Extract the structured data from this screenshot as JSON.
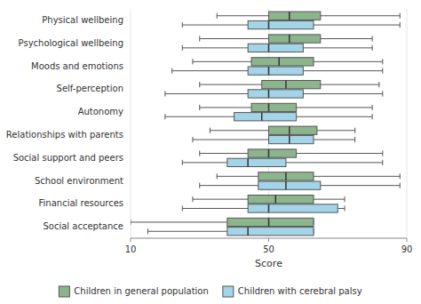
{
  "chart_data": {
    "type": "box",
    "orientation": "horizontal",
    "categories": [
      "Physical wellbeing",
      "Psychological wellbeing",
      "Moods and emotions",
      "Self-perception",
      "Autonomy",
      "Relationships with parents",
      "Social support and peers",
      "School environment",
      "Financial resources",
      "Social acceptance"
    ],
    "series": [
      {
        "name": "Children in general population",
        "color": "#8db58d",
        "values": [
          {
            "whislo": 35,
            "q1": 50,
            "med": 56,
            "q3": 65,
            "whishi": 88
          },
          {
            "whislo": 30,
            "q1": 50,
            "med": 56,
            "q3": 65,
            "whishi": 80
          },
          {
            "whislo": 28,
            "q1": 45,
            "med": 53,
            "q3": 63,
            "whishi": 83
          },
          {
            "whislo": 30,
            "q1": 48,
            "med": 55,
            "q3": 65,
            "whishi": 82
          },
          {
            "whislo": 30,
            "q1": 45,
            "med": 50,
            "q3": 58,
            "whishi": 80
          },
          {
            "whislo": 33,
            "q1": 50,
            "med": 56,
            "q3": 64,
            "whishi": 75
          },
          {
            "whislo": 30,
            "q1": 44,
            "med": 50,
            "q3": 58,
            "whishi": 83
          },
          {
            "whislo": 35,
            "q1": 47,
            "med": 55,
            "q3": 63,
            "whishi": 88
          },
          {
            "whislo": 28,
            "q1": 44,
            "med": 52,
            "q3": 63,
            "whishi": 72
          },
          {
            "whislo": 10,
            "q1": 38,
            "med": 50,
            "q3": 63,
            "whishi": 63
          }
        ]
      },
      {
        "name": "Children with cerebral palsy",
        "color": "#a3d4e8",
        "values": [
          {
            "whislo": 25,
            "q1": 44,
            "med": 50,
            "q3": 63,
            "whishi": 88
          },
          {
            "whislo": 25,
            "q1": 44,
            "med": 50,
            "q3": 60,
            "whishi": 80
          },
          {
            "whislo": 22,
            "q1": 44,
            "med": 50,
            "q3": 60,
            "whishi": 83
          },
          {
            "whislo": 20,
            "q1": 44,
            "med": 50,
            "q3": 60,
            "whishi": 83
          },
          {
            "whislo": 20,
            "q1": 40,
            "med": 48,
            "q3": 58,
            "whishi": 80
          },
          {
            "whislo": 28,
            "q1": 50,
            "med": 56,
            "q3": 63,
            "whishi": 75
          },
          {
            "whislo": 25,
            "q1": 38,
            "med": 44,
            "q3": 55,
            "whishi": 83
          },
          {
            "whislo": 30,
            "q1": 47,
            "med": 55,
            "q3": 65,
            "whishi": 88
          },
          {
            "whislo": 25,
            "q1": 44,
            "med": 50,
            "q3": 70,
            "whishi": 72
          },
          {
            "whislo": 15,
            "q1": 38,
            "med": 44,
            "q3": 63,
            "whishi": 63
          }
        ]
      }
    ],
    "xlim": [
      10,
      90
    ],
    "xticks": [
      10,
      50,
      90
    ],
    "xlabel": "Score",
    "legend": "bottom"
  }
}
